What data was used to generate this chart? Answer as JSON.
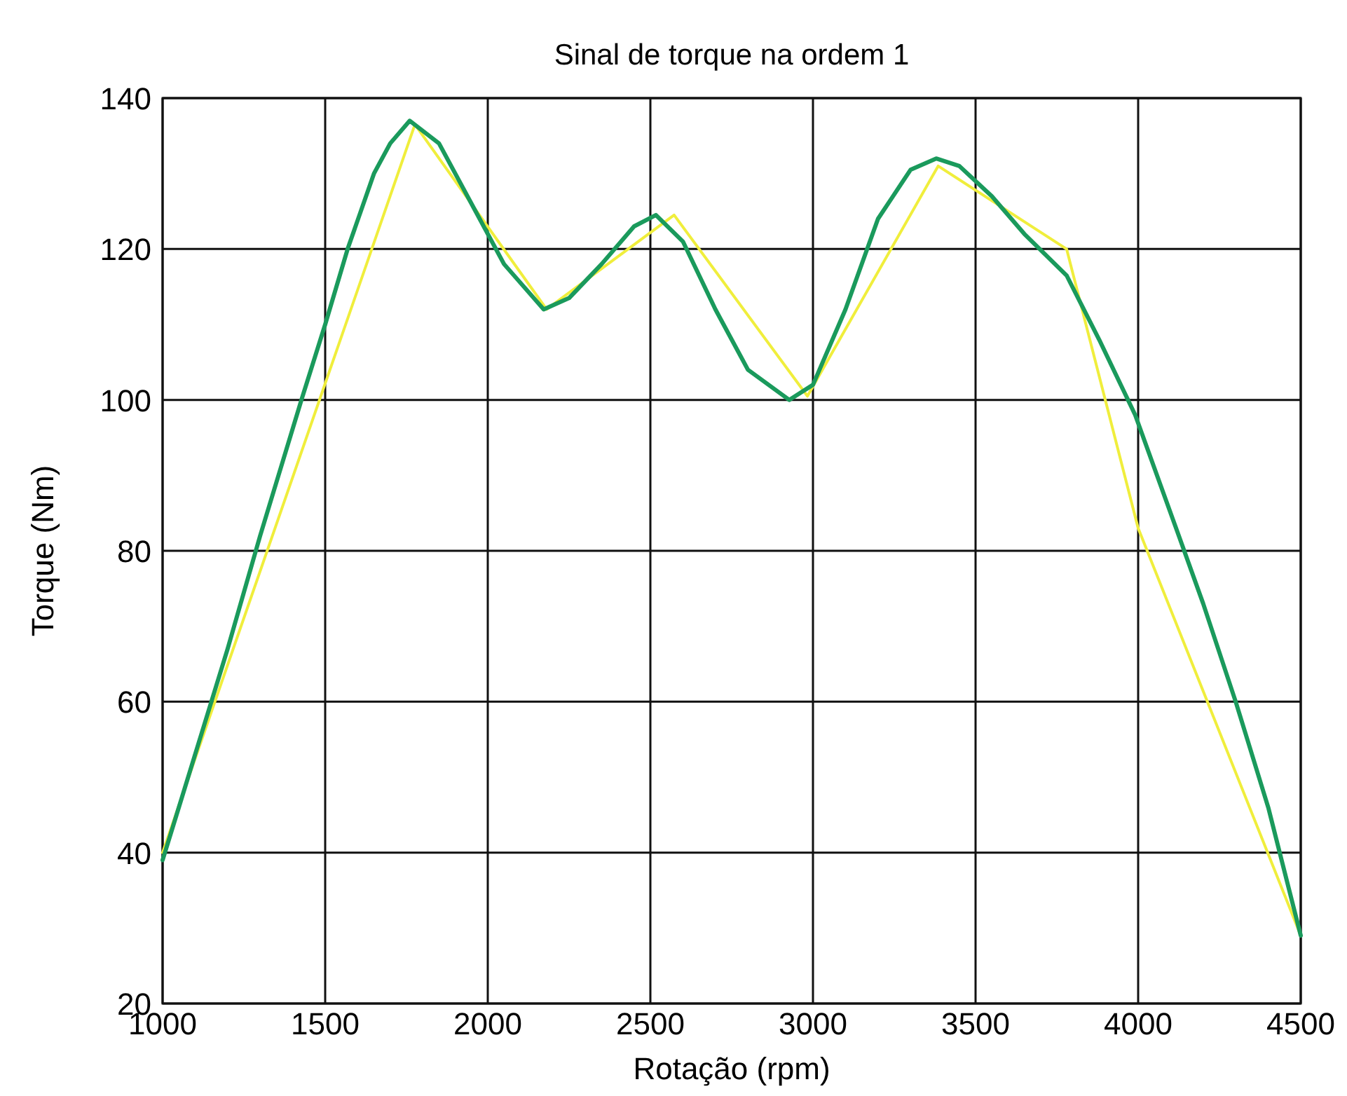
{
  "chart_data": {
    "type": "line",
    "title": "Sinal de torque na ordem 1",
    "xlabel": "Rotação (rpm)",
    "ylabel": "Torque (Nm)",
    "xlim": [
      1000,
      4500
    ],
    "xticks": [
      1000,
      1500,
      2000,
      2500,
      3000,
      3500,
      4000,
      4500
    ],
    "ylim": [
      20,
      140
    ],
    "yticks": [
      20,
      40,
      60,
      80,
      100,
      120,
      140
    ],
    "grid": true,
    "series": [
      {
        "color": "#f0ee3c",
        "x": [
          1000,
          1776,
          2181,
          2573,
          2983,
          3385,
          3780,
          4000,
          4500
        ],
        "values": [
          40,
          136.5,
          112,
          124.5,
          100.5,
          131,
          120,
          83,
          29
        ]
      },
      {
        "color": "#1a9a5c",
        "x": [
          1000,
          1100,
          1200,
          1300,
          1427,
          1500,
          1569,
          1650,
          1700,
          1760,
          1850,
          1950,
          2050,
          2172,
          2250,
          2350,
          2450,
          2517,
          2600,
          2700,
          2800,
          2927,
          3000,
          3100,
          3200,
          3300,
          3379,
          3450,
          3550,
          3650,
          3780,
          3880,
          3991,
          4125,
          4200,
          4300,
          4400,
          4500
        ],
        "values": [
          39,
          53,
          67,
          82,
          100,
          110,
          120,
          130,
          134,
          137,
          134,
          126,
          118,
          112,
          113.5,
          118,
          123,
          124.5,
          121,
          112,
          104,
          100,
          102,
          112,
          124,
          130.5,
          132,
          131,
          127,
          122,
          116.5,
          108,
          98,
          82,
          73,
          60,
          46,
          29
        ]
      }
    ]
  }
}
